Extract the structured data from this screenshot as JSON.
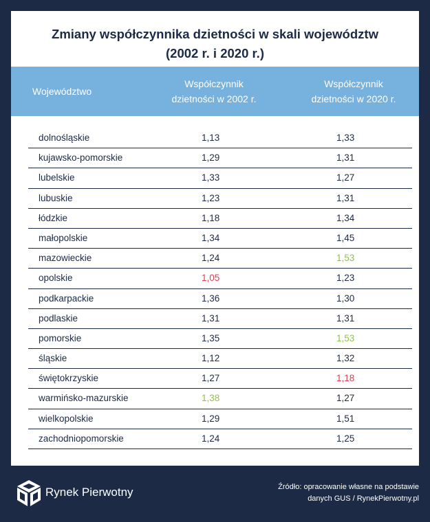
{
  "title_line1": "Zmiany współczynnika dzietności w skali województw",
  "title_line2": "(2002 r. i 2020 r.)",
  "headers": {
    "region": "Województwo",
    "y2002_line1": "Współczynnik",
    "y2002_line2": "dzietności w 2002 r.",
    "y2020_line1": "Współczynnik",
    "y2020_line2": "dzietności w 2020 r."
  },
  "rows": [
    {
      "region": "dolnośląskie",
      "v2002": "1,13",
      "v2020": "1,33"
    },
    {
      "region": "kujawsko-pomorskie",
      "v2002": "1,29",
      "v2020": "1,31"
    },
    {
      "region": "lubelskie",
      "v2002": "1,33",
      "v2020": "1,27"
    },
    {
      "region": "lubuskie",
      "v2002": "1,23",
      "v2020": "1,31"
    },
    {
      "region": "łódzkie",
      "v2002": "1,18",
      "v2020": "1,34"
    },
    {
      "region": "małopolskie",
      "v2002": "1,34",
      "v2020": "1,45"
    },
    {
      "region": "mazowieckie",
      "v2002": "1,24",
      "v2020": "1,53"
    },
    {
      "region": "opolskie",
      "v2002": "1,05",
      "v2020": "1,23"
    },
    {
      "region": "podkarpackie",
      "v2002": "1,36",
      "v2020": "1,30"
    },
    {
      "region": "podlaskie",
      "v2002": "1,31",
      "v2020": "1,31"
    },
    {
      "region": "pomorskie",
      "v2002": "1,35",
      "v2020": "1,53"
    },
    {
      "region": "śląskie",
      "v2002": "1,12",
      "v2020": "1,32"
    },
    {
      "region": "świętokrzyskie",
      "v2002": "1,27",
      "v2020": "1,18"
    },
    {
      "region": "warmińsko-mazurskie",
      "v2002": "1,38",
      "v2020": "1,27"
    },
    {
      "region": "wielkopolskie",
      "v2002": "1,29",
      "v2020": "1,51"
    },
    {
      "region": "zachodniopomorskie",
      "v2002": "1,24",
      "v2020": "1,25"
    }
  ],
  "highlights": {
    "low_color": "#e23a4e",
    "high_color": "#93c24a",
    "min_2002_region": "opolskie",
    "max_2002_region": "warmińsko-mazurskie",
    "min_2020_region": "świętokrzyskie",
    "max_2020_regions": [
      "mazowieckie",
      "pomorskie"
    ]
  },
  "footer": {
    "brand": "Rynek Pierwotny",
    "logo_icon": "rynek-pierwotny-cube-logo-icon",
    "source_line1": "Źródło: opracowanie własne na podstawie",
    "source_line2": "danych GUS / RynekPierwotny.pl"
  }
}
